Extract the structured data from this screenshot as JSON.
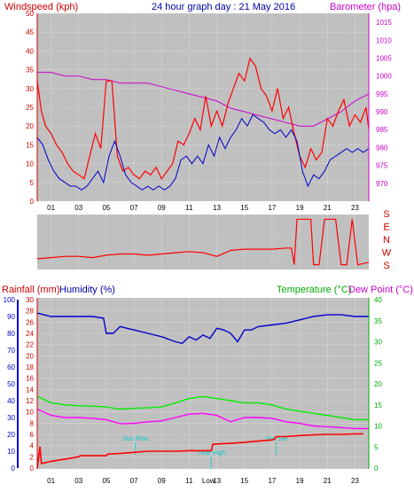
{
  "header": {
    "windspeed_label": "Windspeed (kph)",
    "title": "24 hour graph day : 21 May 2016",
    "barometer_label": "Barometer (hpa)"
  },
  "colors": {
    "bg": "#c0c0c0",
    "wind": "#ff0000",
    "gust": "#ff0000",
    "avg": "#0000cc",
    "baro": "#cc00cc",
    "dir": "#ff0000",
    "rain": "#ff0000",
    "hum": "#0000cc",
    "temp": "#00ee00",
    "dew": "#ff00ff",
    "axis_rain": "#cc0000",
    "axis_hum": "#0000cc",
    "axis_temp": "#00aa00",
    "sun": "#00cccc"
  },
  "chart_data": [
    {
      "type": "line",
      "title": "24 hour graph day : 21 May 2016",
      "x_ticks": [
        "01",
        "03",
        "05",
        "07",
        "09",
        "11",
        "13",
        "15",
        "17",
        "19",
        "21",
        "23"
      ],
      "xlim": [
        0,
        24
      ],
      "ylabel": "Windspeed (kph)",
      "ylim": [
        0,
        50
      ],
      "y_ticks": [
        0,
        5,
        10,
        15,
        20,
        25,
        30,
        35,
        40,
        45,
        50
      ],
      "y2label": "Barometer (hpa)",
      "y2lim": [
        965,
        1017.5
      ],
      "y2_ticks": [
        970,
        975,
        980,
        985,
        990,
        995,
        1000,
        1005,
        1010,
        1015
      ],
      "series": [
        {
          "name": "gust",
          "axis": "left",
          "x": [
            0,
            0.3,
            0.6,
            1,
            1.4,
            1.8,
            2.2,
            2.6,
            3,
            3.4,
            3.8,
            4.2,
            4.6,
            5,
            5.4,
            5.8,
            6.2,
            6.6,
            7,
            7.4,
            7.8,
            8.2,
            8.6,
            9,
            9.4,
            9.8,
            10.2,
            10.6,
            11,
            11.4,
            11.8,
            12.2,
            12.6,
            13,
            13.4,
            13.8,
            14.2,
            14.6,
            15,
            15.4,
            15.8,
            16.2,
            16.6,
            17,
            17.4,
            17.8,
            18.2,
            18.6,
            19,
            19.4,
            19.8,
            20.2,
            20.6,
            21,
            21.4,
            21.8,
            22.2,
            22.6,
            23,
            23.4,
            23.8,
            24
          ],
          "values": [
            32,
            24,
            20,
            18,
            15,
            13,
            10,
            8,
            7,
            6,
            12,
            18,
            14,
            32,
            32,
            12,
            8,
            9,
            7,
            6,
            8,
            7,
            9,
            6,
            8,
            10,
            16,
            15,
            18,
            22,
            19,
            28,
            20,
            24,
            20,
            26,
            30,
            34,
            32,
            38,
            36,
            30,
            28,
            24,
            30,
            22,
            25,
            18,
            12,
            9,
            14,
            11,
            13,
            22,
            20,
            24,
            27,
            20,
            23,
            21,
            25,
            19
          ]
        },
        {
          "name": "average",
          "axis": "left",
          "x": [
            0,
            0.4,
            0.8,
            1.2,
            1.6,
            2,
            2.4,
            2.8,
            3.2,
            3.6,
            4,
            4.4,
            4.8,
            5.2,
            5.6,
            6,
            6.4,
            6.8,
            7.2,
            7.6,
            8,
            8.4,
            8.8,
            9.2,
            9.6,
            10,
            10.4,
            10.8,
            11.2,
            11.6,
            12,
            12.4,
            12.8,
            13.2,
            13.6,
            14,
            14.4,
            14.8,
            15.2,
            15.6,
            16,
            16.4,
            16.8,
            17.2,
            17.6,
            18,
            18.4,
            18.8,
            19.2,
            19.6,
            20,
            20.4,
            20.8,
            21.2,
            21.6,
            22,
            22.4,
            22.8,
            23.2,
            23.6,
            24
          ],
          "values": [
            17,
            15,
            11,
            8,
            6,
            5,
            4,
            4,
            3,
            4,
            6,
            8,
            5,
            12,
            16,
            12,
            7,
            5,
            4,
            3,
            4,
            3,
            4,
            3,
            4,
            6,
            11,
            12,
            10,
            12,
            10,
            15,
            12,
            17,
            14,
            17,
            19,
            22,
            20,
            23,
            22,
            21,
            19,
            18,
            19,
            17,
            19,
            16,
            8,
            4,
            7,
            6,
            8,
            11,
            12,
            13,
            14,
            13,
            14,
            13,
            14
          ]
        },
        {
          "name": "barometer",
          "axis": "right",
          "x": [
            0,
            1,
            2,
            3,
            4,
            5,
            6,
            7,
            8,
            9,
            10,
            11,
            12,
            13,
            14,
            15,
            16,
            17,
            18,
            19,
            20,
            21,
            22,
            23,
            24
          ],
          "values": [
            1001,
            1001,
            1000,
            1000,
            999,
            999,
            998,
            998,
            998,
            997,
            996,
            995,
            994,
            993,
            991,
            990,
            989,
            988,
            987,
            986,
            986,
            988,
            990,
            993,
            995
          ]
        }
      ]
    },
    {
      "type": "line",
      "title": "",
      "xlim": [
        0,
        24
      ],
      "ylabel": "",
      "ylim": [
        0,
        4
      ],
      "y_ticks_text": [
        "S",
        "E",
        "N",
        "W",
        "S"
      ],
      "series": [
        {
          "name": "direction",
          "x": [
            0,
            1,
            2,
            3,
            4,
            5,
            6,
            7,
            8,
            9,
            10,
            11,
            12,
            13,
            14,
            15,
            16,
            17,
            18,
            18.4,
            18.6,
            18.8,
            19.2,
            19.6,
            19.8,
            20,
            20.4,
            20.8,
            21.2,
            21.6,
            22,
            22.4,
            22.8,
            23.2,
            23.6,
            24
          ],
          "values": [
            0.6,
            0.7,
            0.8,
            0.8,
            0.7,
            0.9,
            1,
            1,
            0.9,
            1,
            1.1,
            1.2,
            1.1,
            0.8,
            1.3,
            1.4,
            1.4,
            1.4,
            1.5,
            1.5,
            0.1,
            3.9,
            3.9,
            3.9,
            3.9,
            0.1,
            0.1,
            3.9,
            3.9,
            3.9,
            0.1,
            0.1,
            3.9,
            0.1,
            0.2,
            0.3
          ]
        }
      ]
    },
    {
      "type": "line",
      "title": "",
      "x_ticks": [
        "01",
        "03",
        "05",
        "07",
        "09",
        "11",
        "13",
        "15",
        "17",
        "19",
        "21",
        "23"
      ],
      "xlim": [
        0,
        24
      ],
      "ylabel": "Rainfall (mm)",
      "ylim": [
        0,
        30
      ],
      "y_ticks": [
        0,
        2,
        4,
        6,
        8,
        10,
        12,
        14,
        16,
        18,
        20,
        22,
        24,
        26,
        28,
        30
      ],
      "y_hum_label": "Humidity (%)",
      "y_hum_ticks": [
        0,
        10,
        20,
        30,
        40,
        50,
        60,
        70,
        80,
        90,
        100
      ],
      "y2label": "Temperature (°C)",
      "y3label": "Dew Point (°C)",
      "y2lim": [
        0,
        40
      ],
      "y2_ticks": [
        0,
        5,
        10,
        15,
        20,
        25,
        30,
        35,
        40
      ],
      "annotations": [
        {
          "text": "Sun Rise",
          "x": 7.1
        },
        {
          "text": "Sun Set",
          "x": 17.3
        },
        {
          "text": "Time High",
          "x": 12.6
        },
        {
          "text": "Low",
          "x": 12.4
        }
      ],
      "series": [
        {
          "name": "rainfall",
          "axis": "left",
          "x": [
            0,
            0.2,
            0.3,
            1,
            2,
            3,
            3.1,
            4,
            5,
            5.1,
            6,
            7,
            8,
            9,
            10,
            11,
            12,
            12.6,
            12.7,
            13,
            14,
            15,
            16,
            17,
            17.2,
            17.3,
            18,
            19,
            20,
            21,
            22,
            23,
            23.6
          ],
          "values": [
            0,
            3.8,
            0.8,
            1.2,
            1.6,
            2,
            2.2,
            2.2,
            2.2,
            2.5,
            2.6,
            2.8,
            3,
            3,
            3,
            3.1,
            3.1,
            3.1,
            4.2,
            4.3,
            4.4,
            4.6,
            4.8,
            5,
            5.2,
            5.6,
            5.6,
            5.8,
            5.9,
            6,
            6,
            6.1,
            6.1
          ]
        },
        {
          "name": "humidity",
          "axis": "humidity",
          "x": [
            0,
            1,
            2,
            3,
            4,
            4.8,
            5,
            5.5,
            6,
            7,
            8,
            9,
            10,
            10.5,
            11,
            11.5,
            12,
            12.5,
            13,
            13.5,
            14,
            14.5,
            15,
            15.5,
            16,
            17,
            18,
            19,
            20,
            21,
            22,
            23,
            24
          ],
          "values": [
            92,
            90,
            90,
            90,
            90,
            89,
            80,
            80,
            84,
            82,
            80,
            78,
            75,
            74,
            78,
            76,
            79,
            77,
            83,
            82,
            80,
            75,
            82,
            82,
            84,
            85,
            86,
            88,
            90,
            91,
            91,
            90,
            90
          ]
        },
        {
          "name": "temperature",
          "axis": "right",
          "x": [
            0,
            1,
            2,
            3,
            4,
            5,
            6,
            7,
            8,
            9,
            10,
            11,
            12,
            13,
            14,
            15,
            16,
            17,
            18,
            19,
            20,
            21,
            22,
            23,
            24
          ],
          "values": [
            17,
            15.5,
            15,
            14.8,
            14.7,
            14.5,
            14,
            14.2,
            14.3,
            14.5,
            15.5,
            16.5,
            17,
            16.5,
            16,
            15.5,
            15.5,
            15,
            14,
            13.5,
            13,
            12.5,
            12,
            11.5,
            11.5
          ]
        },
        {
          "name": "dew point",
          "axis": "right",
          "x": [
            0,
            1,
            2,
            3,
            4,
            5,
            6,
            7,
            8,
            9,
            10,
            11,
            12,
            13,
            14,
            15,
            16,
            17,
            18,
            19,
            20,
            21,
            22,
            23,
            24
          ],
          "values": [
            14,
            12.5,
            12,
            12,
            11.8,
            11.5,
            10.5,
            10.6,
            11,
            11.2,
            12,
            12.8,
            13,
            12.5,
            11,
            12,
            12,
            11.8,
            11,
            10.6,
            10,
            9.8,
            9.6,
            9.4,
            9.4
          ]
        }
      ]
    }
  ],
  "axis_text": {
    "direction_letters": [
      "S",
      "E",
      "N",
      "W",
      "S"
    ],
    "rainfall_label": "Rainfall (mm)",
    "humidity_label": "Humidity (%)",
    "temperature_label": "Temperature (°C)",
    "dew_label": "Dew Point (°C)"
  }
}
